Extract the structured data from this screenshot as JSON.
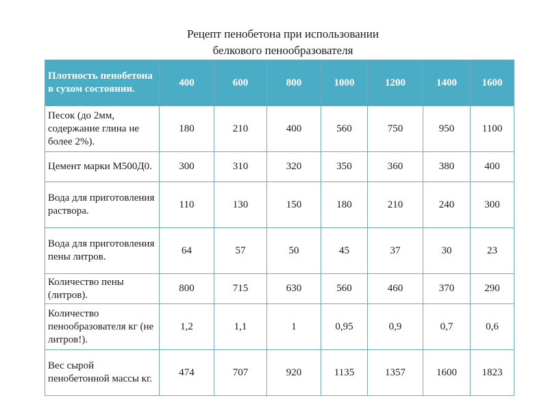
{
  "title": {
    "line1": "Рецепт пенобетона при использовании",
    "line2": "белкового пенообразователя"
  },
  "table": {
    "header": {
      "label": "Плотность пенобетона в сухом состоянии.",
      "densities": [
        "400",
        "600",
        "800",
        "1000",
        "1200",
        "1400",
        "1600"
      ]
    },
    "rows": [
      {
        "label": "Песок (до 2мм, содержание глина не более 2%).",
        "values": [
          "180",
          "210",
          "400",
          "560",
          "750",
          "950",
          "1100"
        ]
      },
      {
        "label": "Цемент марки М500Д0.",
        "values": [
          "300",
          "310",
          "320",
          "350",
          "360",
          "380",
          "400"
        ]
      },
      {
        "label": "Вода для приготовления раствора.",
        "values": [
          "110",
          "130",
          "150",
          "180",
          "210",
          "240",
          "300"
        ]
      },
      {
        "label": "Вода для приготовления пены литров.",
        "values": [
          "64",
          "57",
          "50",
          "45",
          "37",
          "30",
          "23"
        ]
      },
      {
        "label": "Количество пены (литров).",
        "values": [
          "800",
          "715",
          "630",
          "560",
          "460",
          "370",
          "290"
        ]
      },
      {
        "label": "Количество пенообразователя кг (не литров!).",
        "values": [
          "1,2",
          "1,1",
          "1",
          "0,95",
          "0,9",
          "0,7",
          "0,6"
        ]
      },
      {
        "label": "Вес сырой пенобетонной массы кг.",
        "values": [
          "474",
          "707",
          "920",
          "1135",
          "1357",
          "1600",
          "1823"
        ]
      }
    ]
  },
  "colors": {
    "header_background": "#4bacc6",
    "grid_lines": "#6fa9bd"
  }
}
